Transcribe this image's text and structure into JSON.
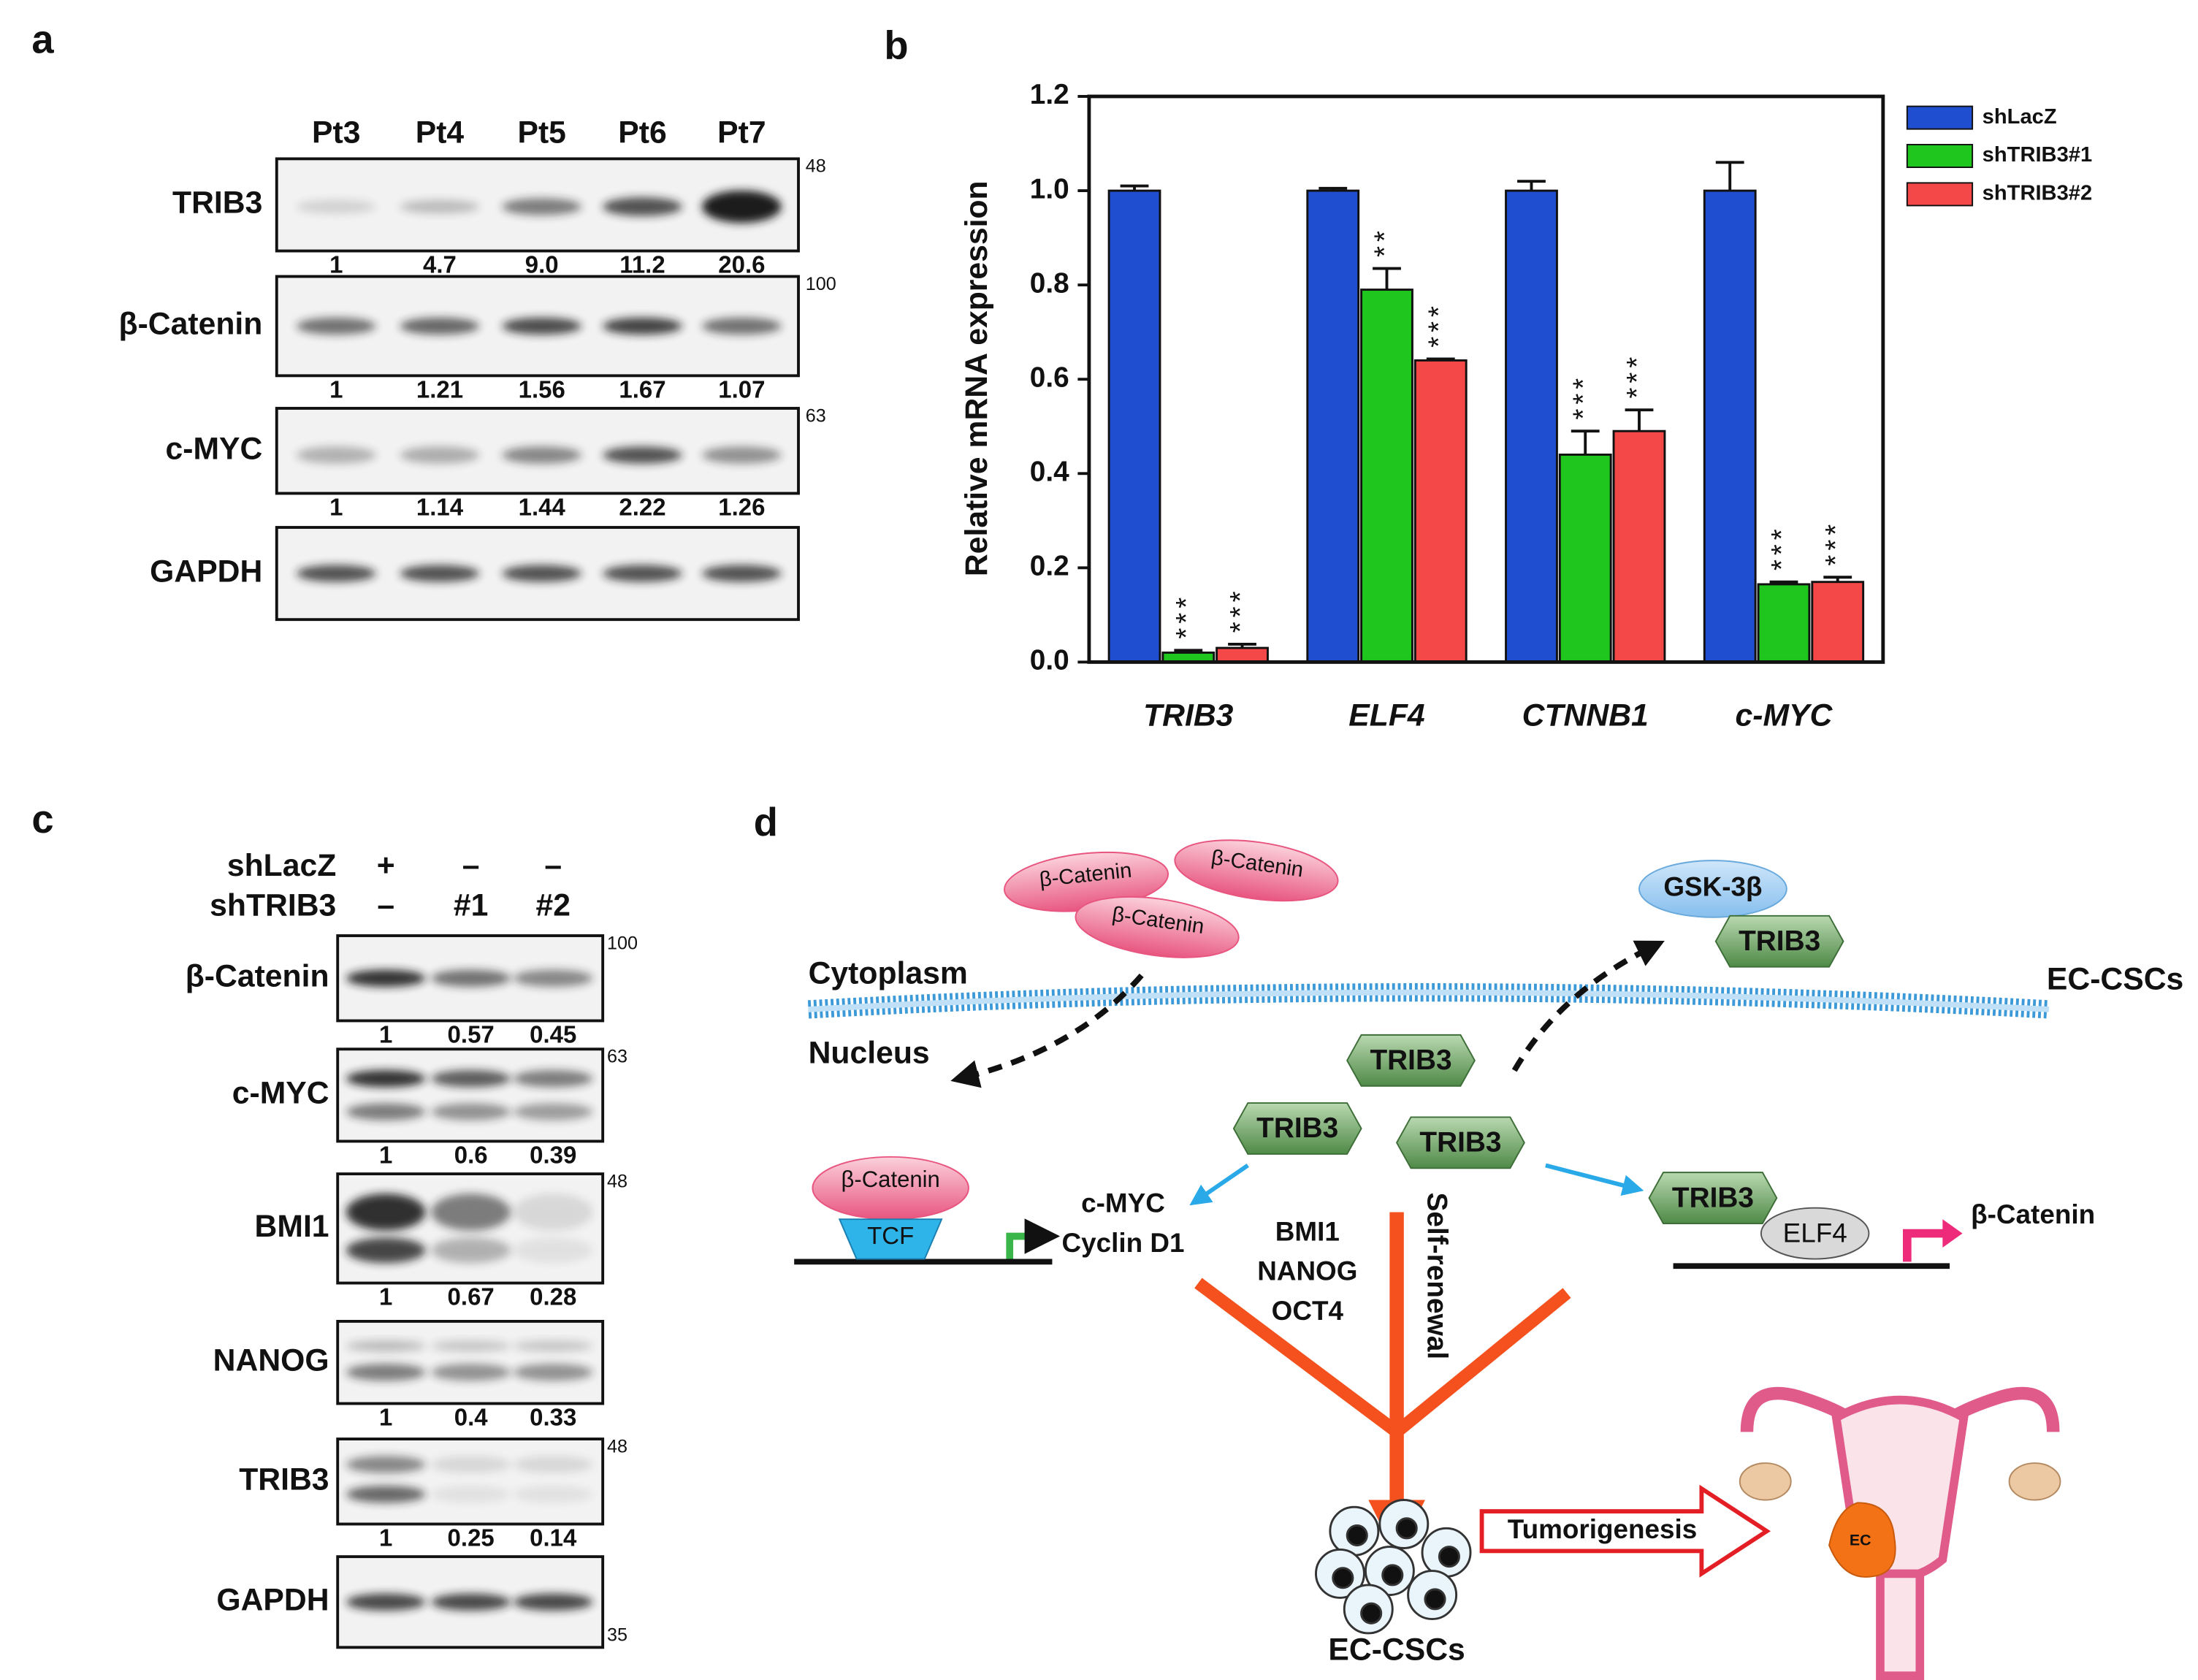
{
  "panel_labels": [
    "a",
    "b",
    "c",
    "d"
  ],
  "blot_a": {
    "lanes": [
      "Pt3",
      "Pt4",
      "Pt5",
      "Pt6",
      "Pt7"
    ],
    "rows": [
      {
        "protein": "TRIB3",
        "marker": "48",
        "quant": [
          "1",
          "4.7",
          "9.0",
          "11.2",
          "20.6"
        ]
      },
      {
        "protein": "β-Catenin",
        "marker": "100",
        "quant": [
          "1",
          "1.21",
          "1.56",
          "1.67",
          "1.07"
        ]
      },
      {
        "protein": "c-MYC",
        "marker": "63",
        "quant": [
          "1",
          "1.14",
          "1.44",
          "2.22",
          "1.26"
        ]
      },
      {
        "protein": "GAPDH"
      }
    ]
  },
  "chart_data": {
    "type": "bar",
    "ylabel": "Relative mRNA expression",
    "categories": [
      "TRIB3",
      "ELF4",
      "CTNNB1",
      "c-MYC"
    ],
    "series": [
      {
        "name": "shLacZ",
        "color": "#1f4fd0",
        "values": [
          1.0,
          1.0,
          1.0,
          1.0
        ],
        "errors": [
          0.01,
          0.005,
          0.02,
          0.06
        ]
      },
      {
        "name": "shTRIB3#1",
        "color": "#1ec61e",
        "values": [
          0.02,
          0.79,
          0.44,
          0.165
        ],
        "errors": [
          0.005,
          0.045,
          0.05,
          0.005
        ],
        "significance": [
          "***",
          "**",
          "***",
          "***"
        ]
      },
      {
        "name": "shTRIB3#2",
        "color": "#f44848",
        "values": [
          0.03,
          0.64,
          0.49,
          0.17
        ],
        "errors": [
          0.008,
          0.003,
          0.045,
          0.01
        ],
        "significance": [
          "***",
          "***",
          "***",
          "***"
        ]
      }
    ],
    "ylim": [
      0,
      1.2
    ],
    "yticks": [
      {
        "value": 0,
        "label": "0.0"
      },
      {
        "value": 0.2,
        "label": "0.2"
      },
      {
        "value": 0.4,
        "label": "0.4"
      },
      {
        "value": 0.6,
        "label": "0.6"
      },
      {
        "value": 0.8,
        "label": "0.8"
      },
      {
        "value": 1,
        "label": "1.0"
      },
      {
        "value": 1.2,
        "label": "1.2"
      }
    ],
    "legend": "outside-top-right"
  },
  "blot_c": {
    "conditions": [
      {
        "name": "shLacZ",
        "lanes": [
          "+",
          "–",
          "–"
        ]
      },
      {
        "name": "shTRIB3",
        "lanes": [
          "–",
          "#1",
          "#2"
        ]
      }
    ],
    "rows": [
      {
        "protein": "β-Catenin",
        "marker": "100",
        "quant": [
          "1",
          "0.57",
          "0.45"
        ]
      },
      {
        "protein": "c-MYC",
        "marker": "63",
        "quant": [
          "1",
          "0.6",
          "0.39"
        ]
      },
      {
        "protein": "BMI1",
        "marker": "48",
        "quant": [
          "1",
          "0.67",
          "0.28"
        ]
      },
      {
        "protein": "NANOG",
        "quant": [
          "1",
          "0.4",
          "0.33"
        ]
      },
      {
        "protein": "TRIB3",
        "marker": "48",
        "quant": [
          "1",
          "0.25",
          "0.14"
        ]
      },
      {
        "protein": "GAPDH",
        "marker": "35"
      }
    ]
  },
  "diagram": {
    "cytoplasm": "Cytoplasm",
    "nucleus": "Nucleus",
    "cell": "EC-CSCs",
    "cytoplasmic_beta_catenin": [
      "β-Catenin",
      "β-Catenin",
      "β-Catenin"
    ],
    "gsk": "GSK-3β",
    "trib3": [
      "TRIB3",
      "TRIB3",
      "TRIB3",
      "TRIB3",
      "TRIB3"
    ],
    "tcf_complex": {
      "beta_catenin": "β-Catenin",
      "tcf": "TCF"
    },
    "tcf_targets": [
      "c-MYC",
      "Cyclin D1"
    ],
    "stemness_genes": [
      "BMI1",
      "NANOG",
      "OCT4"
    ],
    "process": "Self-renewal",
    "elf4": "ELF4",
    "elf4_target": "β-Catenin",
    "outcome": "EC-CSCs",
    "tumorigenesis": "Tumorigenesis",
    "tumor": "EC"
  }
}
